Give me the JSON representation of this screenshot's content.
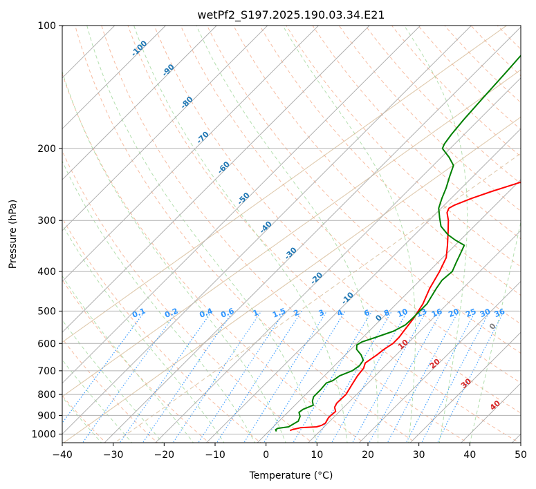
{
  "chart_data": {
    "type": "line",
    "title": "wetPf2_S197.2025.190.03.34.E21",
    "xlabel": "Temperature (°C)",
    "ylabel": "Pressure (hPa)",
    "xlim": [
      -40,
      50
    ],
    "ylim": [
      1050,
      100
    ],
    "y_scale": "log",
    "grid": true,
    "x_ticks": [
      "−40",
      "−30",
      "−20",
      "−10",
      "0",
      "10",
      "20",
      "30",
      "40",
      "50"
    ],
    "y_ticks": [
      "1000",
      "900",
      "800",
      "700",
      "600",
      "500",
      "400",
      "300",
      "200",
      "100"
    ],
    "series": [
      {
        "key": "temperature",
        "color": "#ff0000",
        "points": [
          [
            980,
            4.0
          ],
          [
            975,
            4.3
          ],
          [
            965,
            5.5
          ],
          [
            960,
            8.5
          ],
          [
            952,
            9.2
          ],
          [
            940,
            9.5
          ],
          [
            910,
            9.0
          ],
          [
            880,
            9.2
          ],
          [
            860,
            8.2
          ],
          [
            840,
            7.8
          ],
          [
            800,
            7.9
          ],
          [
            760,
            7.2
          ],
          [
            720,
            6.5
          ],
          [
            690,
            6.2
          ],
          [
            670,
            5.5
          ],
          [
            640,
            6.2
          ],
          [
            620,
            6.5
          ],
          [
            600,
            7.1
          ],
          [
            580,
            7.1
          ],
          [
            560,
            6.8
          ],
          [
            520,
            6.2
          ],
          [
            480,
            5.2
          ],
          [
            440,
            3.5
          ],
          [
            400,
            2.1
          ],
          [
            370,
            0.7
          ],
          [
            345,
            -1.5
          ],
          [
            320,
            -4.0
          ],
          [
            300,
            -6.2
          ],
          [
            287,
            -8.0
          ],
          [
            280,
            -8.5
          ],
          [
            275,
            -8.0
          ],
          [
            265,
            -6.0
          ],
          [
            255,
            -3.5
          ],
          [
            245,
            -0.5
          ],
          [
            235,
            2.5
          ],
          [
            220,
            5.5
          ],
          [
            205,
            8.0
          ],
          [
            195,
            9.5
          ],
          [
            180,
            10.5
          ],
          [
            165,
            11.5
          ],
          [
            150,
            12.8
          ],
          [
            135,
            14.0
          ],
          [
            120,
            15.5
          ],
          [
            110,
            16.5
          ],
          [
            100,
            17.5
          ]
        ]
      },
      {
        "key": "dewpoint",
        "color": "#008000",
        "points": [
          [
            985,
            1.5
          ],
          [
            975,
            1.0
          ],
          [
            968,
            1.2
          ],
          [
            960,
            3.0
          ],
          [
            945,
            3.4
          ],
          [
            930,
            3.8
          ],
          [
            905,
            3.2
          ],
          [
            885,
            2.2
          ],
          [
            870,
            2.4
          ],
          [
            850,
            3.6
          ],
          [
            830,
            2.6
          ],
          [
            810,
            2.0
          ],
          [
            780,
            2.0
          ],
          [
            750,
            1.8
          ],
          [
            740,
            2.6
          ],
          [
            720,
            3.0
          ],
          [
            700,
            4.5
          ],
          [
            680,
            4.9
          ],
          [
            660,
            4.6
          ],
          [
            640,
            3.1
          ],
          [
            620,
            1.1
          ],
          [
            605,
            0.3
          ],
          [
            595,
            0.7
          ],
          [
            580,
            2.5
          ],
          [
            560,
            4.8
          ],
          [
            540,
            5.9
          ],
          [
            520,
            6.0
          ],
          [
            480,
            6.0
          ],
          [
            440,
            4.8
          ],
          [
            420,
            4.3
          ],
          [
            400,
            4.6
          ],
          [
            380,
            3.6
          ],
          [
            360,
            2.6
          ],
          [
            345,
            1.8
          ],
          [
            335,
            -1.0
          ],
          [
            325,
            -3.5
          ],
          [
            310,
            -6.5
          ],
          [
            295,
            -8.5
          ],
          [
            280,
            -10.5
          ],
          [
            265,
            -11.8
          ],
          [
            250,
            -13.0
          ],
          [
            235,
            -14.5
          ],
          [
            220,
            -16.0
          ],
          [
            210,
            -18.5
          ],
          [
            200,
            -21.5
          ],
          [
            195,
            -22.0
          ],
          [
            185,
            -22.5
          ],
          [
            170,
            -23.0
          ],
          [
            150,
            -23.5
          ],
          [
            130,
            -24.0
          ],
          [
            115,
            -24.5
          ],
          [
            100,
            -24.5
          ]
        ]
      }
    ],
    "isotherm_labels": {
      "color": "#1f77b4",
      "items": [
        {
          "text": "-100",
          "t": -100,
          "p": 115
        },
        {
          "text": "-90",
          "t": -90,
          "p": 130
        },
        {
          "text": "-80",
          "t": -80,
          "p": 156
        },
        {
          "text": "-70",
          "t": -70,
          "p": 190
        },
        {
          "text": "-60",
          "t": -60,
          "p": 225
        },
        {
          "text": "-50",
          "t": -50,
          "p": 268
        },
        {
          "text": "-40",
          "t": -40,
          "p": 315
        },
        {
          "text": "-30",
          "t": -30,
          "p": 365
        },
        {
          "text": "-20",
          "t": -20,
          "p": 420
        },
        {
          "text": "-10",
          "t": -10,
          "p": 470
        },
        {
          "text": "0",
          "t": 0,
          "p": 525
        }
      ]
    },
    "mixing_ratio_labels": {
      "color": "#2f96ff",
      "items": [
        "0.1",
        "0.2",
        "0.4",
        "0.6",
        "1",
        "1.5",
        "2",
        "3",
        "4",
        "6",
        "8",
        "10",
        "13",
        "16",
        "20",
        "25",
        "30",
        "36"
      ]
    },
    "dry_adiabat_labels": {
      "color": "#d62728",
      "items": [
        {
          "text": "10",
          "t": 10,
          "p": 610
        },
        {
          "text": "20",
          "t": 20,
          "p": 680
        },
        {
          "text": "30",
          "t": 30,
          "p": 760
        },
        {
          "text": "40",
          "t": 40,
          "p": 860
        }
      ]
    },
    "moist_adiabat_label": {
      "text": "0",
      "color": "#808080"
    }
  }
}
